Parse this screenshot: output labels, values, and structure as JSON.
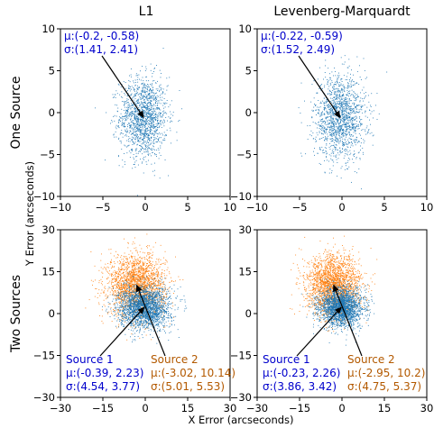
{
  "figure": {
    "col_titles": [
      "L1",
      "Levenberg-Marquardt"
    ],
    "row_titles": [
      "One Source",
      "Two Sources"
    ],
    "xlabel": "X Error (arcseconds)",
    "ylabel": "Y Error (arcseconds)"
  },
  "colors": {
    "source1": "#1f77b4",
    "source2": "#ff7f0e",
    "annotation_blue": "#0000cc",
    "annotation_orange": "#b35900"
  },
  "chart_data": [
    {
      "type": "scatter",
      "panel": "one-source-l1",
      "title": "L1",
      "xlim": [
        -10,
        10
      ],
      "ylim": [
        -10,
        10
      ],
      "xticks": [
        -10,
        -5,
        0,
        5,
        10
      ],
      "yticks": [
        -10,
        -5,
        0,
        5,
        10
      ],
      "xticklabels": [
        "−10",
        "−5",
        "0",
        "5",
        "10"
      ],
      "yticklabels": [
        "−10",
        "−5",
        "0",
        "5",
        "10"
      ],
      "series": [
        {
          "mu": [
            -0.2,
            -0.58
          ],
          "sigma": [
            1.41,
            2.41
          ],
          "color": "#1f77b4",
          "n": 1500
        }
      ],
      "annotations": [
        {
          "lines": [
            "μ:(-0.2, -0.58)",
            "σ:(1.41, 2.41)"
          ],
          "color": "#0000cc",
          "pos": "top-left",
          "arrow_to": [
            -0.2,
            -0.58
          ]
        }
      ]
    },
    {
      "type": "scatter",
      "panel": "one-source-lm",
      "title": "Levenberg-Marquardt",
      "xlim": [
        -10,
        10
      ],
      "ylim": [
        -10,
        10
      ],
      "xticks": [
        -10,
        -5,
        0,
        5,
        10
      ],
      "yticks": [
        -10,
        -5,
        0,
        5,
        10
      ],
      "xticklabels": [
        "−10",
        "−5",
        "0",
        "5",
        "10"
      ],
      "yticklabels": [
        "−10",
        "−5",
        "0",
        "5",
        "10"
      ],
      "series": [
        {
          "mu": [
            -0.22,
            -0.59
          ],
          "sigma": [
            1.52,
            2.49
          ],
          "color": "#1f77b4",
          "n": 1500
        }
      ],
      "annotations": [
        {
          "lines": [
            "μ:(-0.22, -0.59)",
            "σ:(1.52, 2.49)"
          ],
          "color": "#0000cc",
          "pos": "top-left",
          "arrow_to": [
            -0.22,
            -0.59
          ]
        }
      ]
    },
    {
      "type": "scatter",
      "panel": "two-sources-l1",
      "xlim": [
        -30,
        30
      ],
      "ylim": [
        -30,
        30
      ],
      "xticks": [
        -30,
        -15,
        0,
        15,
        30
      ],
      "yticks": [
        -30,
        -15,
        0,
        15,
        30
      ],
      "xticklabels": [
        "−30",
        "−15",
        "0",
        "15",
        "30"
      ],
      "yticklabels": [
        "−30",
        "−15",
        "0",
        "15",
        "30"
      ],
      "series": [
        {
          "name": "Source 2",
          "mu": [
            -3.02,
            10.14
          ],
          "sigma": [
            5.01,
            5.53
          ],
          "color": "#ff7f0e",
          "n": 2200
        },
        {
          "name": "Source 1",
          "mu": [
            -0.39,
            2.23
          ],
          "sigma": [
            4.54,
            3.77
          ],
          "color": "#1f77b4",
          "n": 2200
        }
      ],
      "annotations": [
        {
          "lines": [
            "Source 1",
            "μ:(-0.39, 2.23)",
            "σ:(4.54, 3.77)"
          ],
          "color": "#0000cc",
          "pos": "bottom-left",
          "arrow_to": [
            -0.39,
            2.23
          ]
        },
        {
          "lines": [
            "Source 2",
            "μ:(-3.02, 10.14)",
            "σ:(5.01, 5.53)"
          ],
          "color": "#b35900",
          "pos": "bottom-right",
          "arrow_to": [
            -3.02,
            10.14
          ]
        }
      ]
    },
    {
      "type": "scatter",
      "panel": "two-sources-lm",
      "xlim": [
        -30,
        30
      ],
      "ylim": [
        -30,
        30
      ],
      "xticks": [
        -30,
        -15,
        0,
        15,
        30
      ],
      "yticks": [
        -30,
        -15,
        0,
        15,
        30
      ],
      "xticklabels": [
        "−30",
        "−15",
        "0",
        "15",
        "30"
      ],
      "yticklabels": [
        "−30",
        "−15",
        "0",
        "15",
        "30"
      ],
      "series": [
        {
          "name": "Source 2",
          "mu": [
            -2.95,
            10.2
          ],
          "sigma": [
            4.75,
            5.37
          ],
          "color": "#ff7f0e",
          "n": 2200
        },
        {
          "name": "Source 1",
          "mu": [
            -0.23,
            2.26
          ],
          "sigma": [
            3.86,
            3.42
          ],
          "color": "#1f77b4",
          "n": 2200
        }
      ],
      "annotations": [
        {
          "lines": [
            "Source 1",
            "μ:(-0.23, 2.26)",
            "σ:(3.86, 3.42)"
          ],
          "color": "#0000cc",
          "pos": "bottom-left",
          "arrow_to": [
            -0.23,
            2.26
          ]
        },
        {
          "lines": [
            "Source 2",
            "μ:(-2.95, 10.2)",
            "σ:(4.75, 5.37)"
          ],
          "color": "#b35900",
          "pos": "bottom-right",
          "arrow_to": [
            -2.95,
            10.2
          ]
        }
      ]
    }
  ]
}
